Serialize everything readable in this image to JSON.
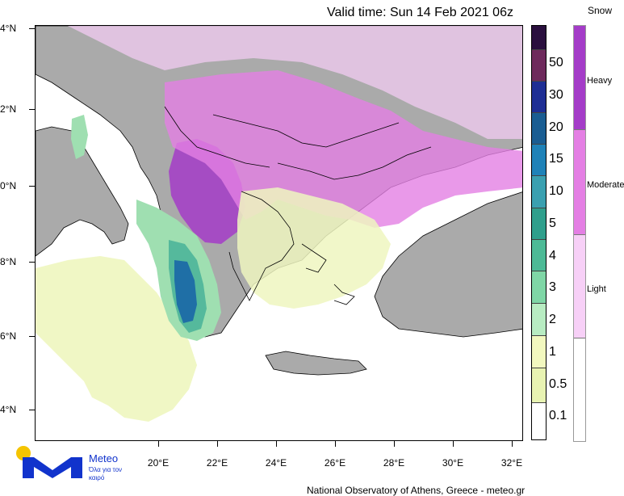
{
  "title": "Valid time: Sun 14 Feb 2021 06z",
  "map": {
    "lat_ticks": [
      "4°N",
      "2°N",
      "0°N",
      "8°N",
      "6°N",
      "4°N"
    ],
    "lon_ticks": [
      "20°E",
      "22°E",
      "24°E",
      "26°E",
      "28°E",
      "30°E",
      "32°E"
    ],
    "colors": {
      "land": "#aaaaaa",
      "sea": "#ffffff",
      "light_snow": "#f6cdf6",
      "moderate_snow": "#e47fe4",
      "heavy_snow": "#a43cc8",
      "rain_01": "#f0f7c2",
      "rain_1": "#d6f1c6",
      "rain_3": "#9fdfb1",
      "rain_4": "#55b99c",
      "rain_10": "#2a7fb0",
      "rain_20": "#174b8a"
    }
  },
  "precip_legend": {
    "labels": [
      "50",
      "30",
      "20",
      "15",
      "10",
      "5",
      "4",
      "3",
      "2",
      "1",
      "0.5",
      "0.1"
    ],
    "colors": [
      "#2a0f3e",
      "#6e2a5c",
      "#1e2e94",
      "#1a5d92",
      "#1f82b8",
      "#3aa0b0",
      "#2f9f8c",
      "#4dba96",
      "#7fd6a6",
      "#b8ecc2",
      "#f2f8bf",
      "#e8f3b2",
      "#ffffff"
    ]
  },
  "snow_legend": {
    "title": "Snow",
    "labels": [
      "Heavy",
      "Moderate",
      "Light"
    ],
    "colors": [
      "#a43cc8",
      "#e47fe4",
      "#f7d0f7",
      "#ffffff"
    ]
  },
  "logo": {
    "name": "Meteo",
    "tagline": "Όλα για τον καιρό",
    "dot_color": "#f5c400",
    "brand_color": "#1133cc"
  },
  "credit": "National Observatory of Athens, Greece - meteo.gr"
}
